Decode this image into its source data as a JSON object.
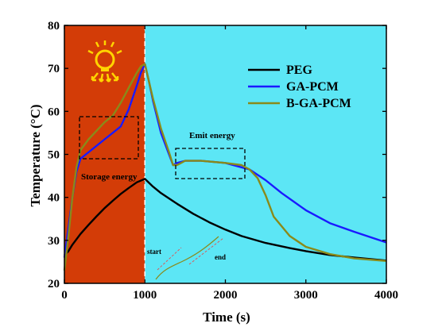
{
  "chart_data": {
    "type": "line",
    "xlabel": "Time (s)",
    "ylabel": "Temperature (°C)",
    "xlim": [
      0,
      4000
    ],
    "ylim": [
      20,
      80
    ],
    "xticks": [
      0,
      1000,
      2000,
      3000,
      4000
    ],
    "yticks": [
      20,
      30,
      40,
      50,
      60,
      70,
      80
    ],
    "legend_position": "top-right",
    "regions": [
      {
        "x_start": 0,
        "x_end": 1000,
        "color": "#d33c07"
      },
      {
        "x_start": 1000,
        "x_end": 4000,
        "color": "#5ce6f5"
      }
    ],
    "divider_x": 1000,
    "series": [
      {
        "name": "PEG",
        "color": "#000000",
        "x": [
          0,
          50,
          100,
          200,
          300,
          400,
          500,
          600,
          700,
          800,
          900,
          1000,
          1100,
          1200,
          1400,
          1600,
          1800,
          2000,
          2200,
          2500,
          2800,
          3000,
          3300,
          3600,
          4000
        ],
        "y": [
          26.5,
          27.5,
          29,
          31.5,
          33.6,
          35.6,
          37.5,
          39.2,
          40.8,
          42.2,
          43.5,
          44.3,
          42.5,
          41,
          38.5,
          36.2,
          34.2,
          32.5,
          31,
          29.4,
          28.2,
          27.5,
          26.6,
          26,
          25.3
        ]
      },
      {
        "name": "GA-PCM",
        "color": "#1a1aff",
        "x": [
          0,
          50,
          100,
          150,
          200,
          300,
          400,
          500,
          600,
          700,
          800,
          900,
          950,
          1000,
          1050,
          1100,
          1200,
          1300,
          1350,
          1400,
          1500,
          1700,
          2000,
          2200,
          2300,
          2500,
          2700,
          3000,
          3300,
          3600,
          4000
        ],
        "y": [
          26,
          33,
          40,
          46,
          49,
          50.5,
          52,
          53.5,
          55,
          56.5,
          60.5,
          66,
          69,
          71,
          67,
          62.5,
          55,
          50,
          47.5,
          48,
          48.5,
          48.5,
          48,
          47,
          46.5,
          44,
          41,
          37,
          34,
          32,
          29.5
        ]
      },
      {
        "name": "B-GA-PCM",
        "color": "#8a8a1a",
        "x": [
          0,
          50,
          100,
          150,
          200,
          300,
          400,
          500,
          600,
          700,
          800,
          900,
          950,
          1000,
          1050,
          1100,
          1200,
          1300,
          1350,
          1400,
          1500,
          1700,
          2000,
          2200,
          2300,
          2400,
          2500,
          2600,
          2800,
          3000,
          3300,
          3600,
          4000
        ],
        "y": [
          23,
          31,
          40,
          47,
          51,
          53.5,
          55.5,
          57.5,
          59,
          62,
          65.5,
          69,
          70.5,
          71,
          67,
          63,
          56,
          50.5,
          47.5,
          47.5,
          48.5,
          48.5,
          48,
          47.5,
          46.5,
          44.5,
          40.5,
          35.5,
          31,
          28.5,
          26.8,
          25.8,
          25.2
        ]
      }
    ],
    "annotations": {
      "storage_label": "Storage energy",
      "emit_label": "Emit energy",
      "start_label": "start",
      "end_label": "end"
    }
  }
}
